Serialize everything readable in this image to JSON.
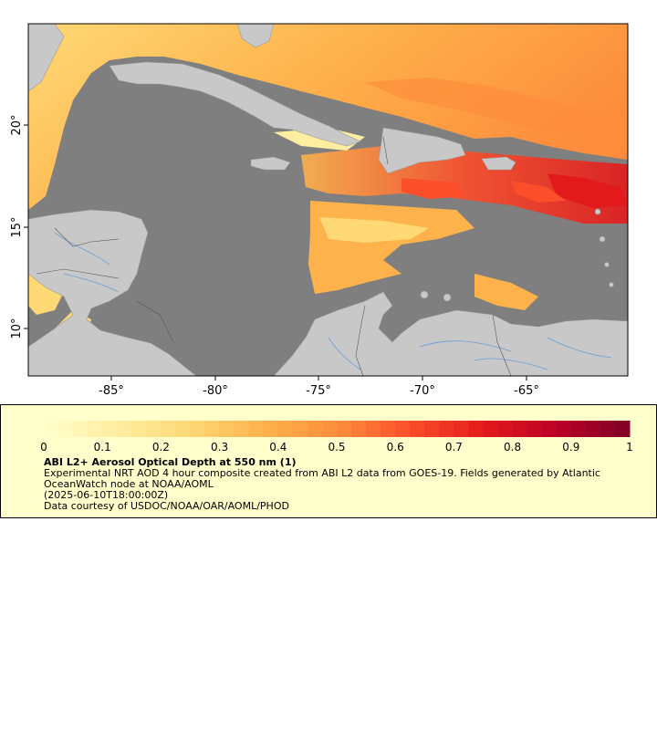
{
  "map": {
    "longitude_labels": [
      "-85°",
      "-80°",
      "-75°",
      "-70°",
      "-65°"
    ],
    "latitude_labels": [
      "20°",
      "15°",
      "10°"
    ],
    "colors": {
      "ocean_nodata": "#7f7f7f",
      "land": "#c8c8c8",
      "rivers": "#6a9fd4",
      "borders": "#555555"
    }
  },
  "legend": {
    "ticks": [
      "0",
      "0.1",
      "0.2",
      "0.3",
      "0.4",
      "0.5",
      "0.6",
      "0.7",
      "0.8",
      "0.9",
      "1"
    ],
    "colorbar_colors": [
      "#ffffcc",
      "#ffeda0",
      "#fed976",
      "#feb24c",
      "#fd8d3c",
      "#fc4e2a",
      "#e31a1c",
      "#bd0026",
      "#800026"
    ],
    "title": "ABI L2+ Aerosol Optical Depth at 550 nm (1)",
    "line1": "Experimental NRT AOD 4 hour composite created from ABI L2 data from GOES-19. Fields generated by Atlantic OceanWatch node at NOAA/AOML",
    "line2": "(2025-06-10T18:00:00Z)",
    "line3": "Data courtesy of USDOC/NOAA/OAR/AOML/PHOD"
  }
}
